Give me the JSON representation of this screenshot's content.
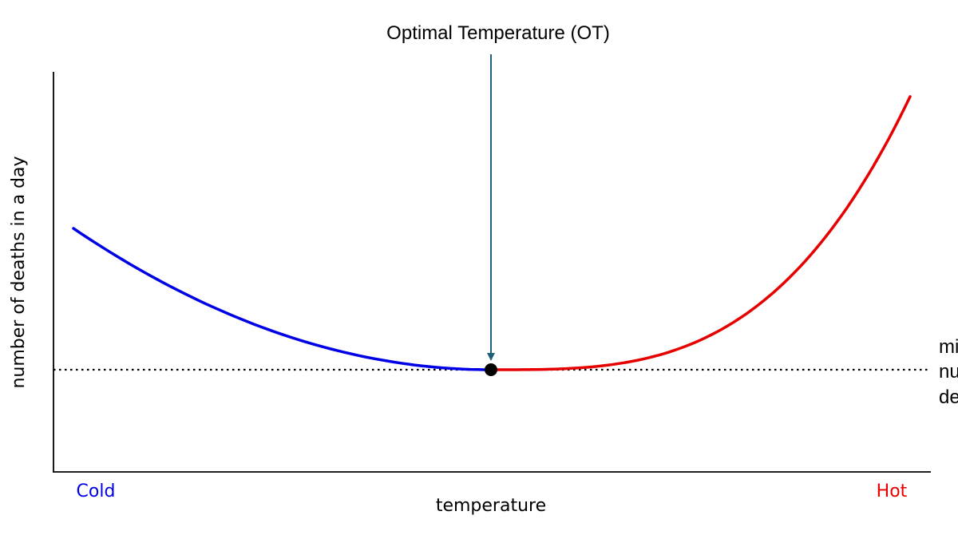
{
  "title": "Optimal Temperature (OT)",
  "x_axis": {
    "label": "temperature",
    "left_label": "Cold",
    "right_label": "Hot"
  },
  "y_axis": {
    "label": "number of deaths in a day"
  },
  "baseline_label_lines": [
    "mi",
    "nu",
    "de"
  ],
  "colors": {
    "cold_curve": "#0000e6",
    "hot_curve": "#e60000",
    "arrow": "#1f5f7a",
    "axis": "#000000",
    "cold_text": "#0000e6",
    "hot_text": "#e60000",
    "optimum_point": "#000000"
  }
}
